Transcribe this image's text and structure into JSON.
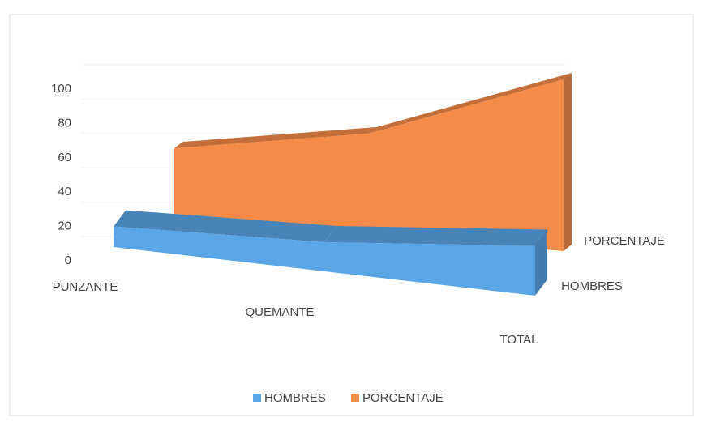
{
  "chart_data": {
    "type": "area3d",
    "categories": [
      "PUNZANTE",
      "QUEMANTE",
      "TOTAL"
    ],
    "series": [
      {
        "name": "HOMBRES",
        "color": "#5aa5e6",
        "values": [
          12,
          17,
          29
        ]
      },
      {
        "name": "PORCENTAJE",
        "color": "#f58b48",
        "values": [
          41,
          59,
          100
        ]
      }
    ],
    "ylim": [
      0,
      100
    ],
    "yticks": [
      0,
      20,
      40,
      60,
      80,
      100
    ],
    "grid": true,
    "legend": "bottom"
  }
}
